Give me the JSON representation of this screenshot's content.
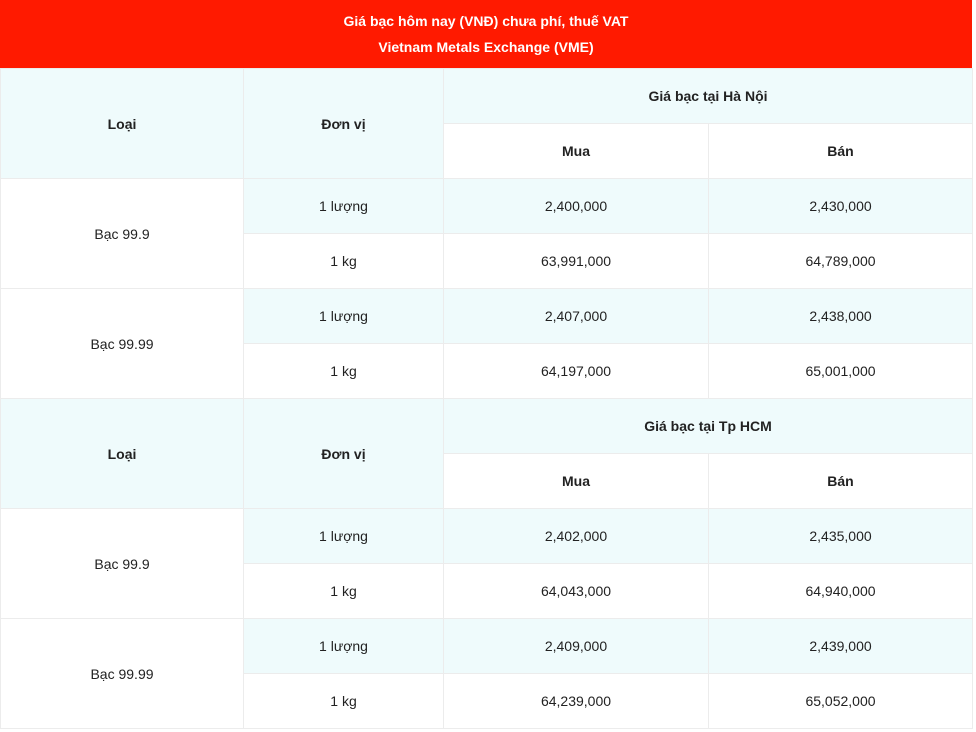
{
  "header": {
    "title": "Giá bạc hôm nay (VNĐ) chưa phí, thuế VAT",
    "subtitle": "Vietnam Metals Exchange (VME)"
  },
  "sections": [
    {
      "columns": {
        "type": "Loại",
        "unit": "Đơn vị",
        "region": "Giá bạc tại Hà Nội",
        "buy": "Mua",
        "sell": "Bán"
      },
      "rows": [
        {
          "type": "Bạc 99.9",
          "items": [
            {
              "unit": "1 lượng",
              "buy": "2,400,000",
              "sell": "2,430,000"
            },
            {
              "unit": "1 kg",
              "buy": "63,991,000",
              "sell": "64,789,000"
            }
          ]
        },
        {
          "type": "Bạc 99.99",
          "items": [
            {
              "unit": "1 lượng",
              "buy": "2,407,000",
              "sell": "2,438,000"
            },
            {
              "unit": "1 kg",
              "buy": "64,197,000",
              "sell": "65,001,000"
            }
          ]
        }
      ]
    },
    {
      "columns": {
        "type": "Loại",
        "unit": "Đơn vị",
        "region": "Giá bạc tại Tp HCM",
        "buy": "Mua",
        "sell": "Bán"
      },
      "rows": [
        {
          "type": "Bạc 99.9",
          "items": [
            {
              "unit": "1 lượng",
              "buy": "2,402,000",
              "sell": "2,435,000"
            },
            {
              "unit": "1 kg",
              "buy": "64,043,000",
              "sell": "64,940,000"
            }
          ]
        },
        {
          "type": "Bạc 99.99",
          "items": [
            {
              "unit": "1 lượng",
              "buy": "2,409,000",
              "sell": "2,439,000"
            },
            {
              "unit": "1 kg",
              "buy": "64,239,000",
              "sell": "65,052,000"
            }
          ]
        }
      ]
    }
  ]
}
